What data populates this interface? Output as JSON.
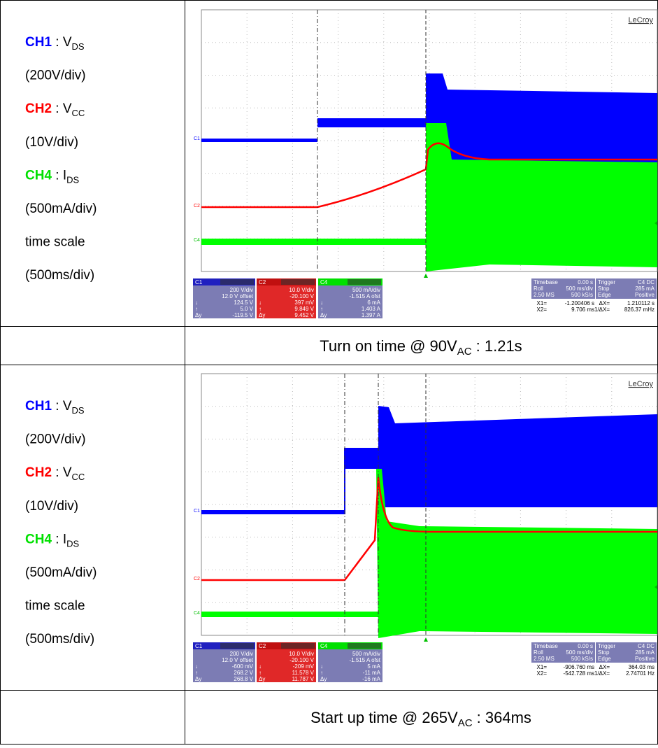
{
  "sections": [
    {
      "labels": [
        {
          "ch": "CH1",
          "color": "#0000ff",
          "text": " : V",
          "sub": "DS"
        },
        {
          "text": "(200V/div)"
        },
        {
          "ch": "CH2",
          "color": "#ff0000",
          "text": " : V",
          "sub": "CC"
        },
        {
          "text": "(10V/div)"
        },
        {
          "ch": "CH4",
          "color": "#00e000",
          "text": " : I",
          "sub": "DS"
        },
        {
          "text": "(500mA/div)"
        },
        {
          "text": "time scale"
        },
        {
          "text": "(500ms/div)"
        }
      ],
      "scope": {
        "brand": "LeCroy",
        "markers": [
          "C1",
          "C2",
          "C4"
        ],
        "channels": [
          {
            "label": "C1",
            "rows": [
              {
                "value": "200 V/div"
              },
              {
                "value": "12.0 V offset"
              },
              {
                "key": "↓",
                "value": "124.5 V"
              },
              {
                "key": "↑",
                "value": "5.0 V"
              },
              {
                "key": "Δy",
                "value": "-119.5 V"
              }
            ]
          },
          {
            "label": "C2",
            "rows": [
              {
                "value": "10.0 V/div"
              },
              {
                "value": "-20.100 V"
              },
              {
                "key": "↓",
                "value": "397 mV"
              },
              {
                "key": "↑",
                "value": "9.849 V"
              },
              {
                "key": "Δy",
                "value": "9.452 V"
              }
            ]
          },
          {
            "label": "C4",
            "rows": [
              {
                "value": "500 mA/div"
              },
              {
                "value": "-1.515 A ofst"
              },
              {
                "key": "↓",
                "value": "6 mA"
              },
              {
                "key": "↑",
                "value": "1.403 A"
              },
              {
                "key": "Δy",
                "value": "1.397 A"
              }
            ]
          }
        ],
        "timebase": [
          {
            "key": "Timebase",
            "value": "0.00 s"
          },
          {
            "key": "Roll",
            "value": "500 ms/div"
          },
          {
            "key": "2.50 MS",
            "value": "500 kS/s"
          }
        ],
        "trigger": [
          {
            "key": "Trigger",
            "value": "C4 DC"
          },
          {
            "key": "Stop",
            "value": "285 mA"
          },
          {
            "key": "Edge",
            "value": "Positive"
          }
        ],
        "cursors": [
          {
            "key": "X1=",
            "value": "-1.200406 s"
          },
          {
            "key": "ΔX=",
            "value": "1.210112 s"
          },
          {
            "key": "X2=",
            "value": "9.706 ms"
          },
          {
            "key": "1/ΔX=",
            "value": "826.37 mHz"
          }
        ]
      },
      "caption": {
        "pre": "Turn on time @ 90V",
        "sub": "AC",
        "post": " : 1.21s"
      }
    },
    {
      "labels": [
        {
          "ch": "CH1",
          "color": "#0000ff",
          "text": " : V",
          "sub": "DS"
        },
        {
          "text": "(200V/div)"
        },
        {
          "ch": "CH2",
          "color": "#ff0000",
          "text": " : V",
          "sub": "CC"
        },
        {
          "text": "(10V/div)"
        },
        {
          "ch": "CH4",
          "color": "#00e000",
          "text": " : I",
          "sub": "DS"
        },
        {
          "text": "(500mA/div)"
        },
        {
          "text": "time scale"
        },
        {
          "text": "(500ms/div)"
        }
      ],
      "scope": {
        "brand": "LeCroy",
        "markers": [
          "C1",
          "C2",
          "C4"
        ],
        "channels": [
          {
            "label": "C1",
            "rows": [
              {
                "value": "200 V/div"
              },
              {
                "value": "12.0 V offset"
              },
              {
                "key": "↓",
                "value": "-600 mV"
              },
              {
                "key": "↑",
                "value": "268.2 V"
              },
              {
                "key": "Δy",
                "value": "268.8 V"
              }
            ]
          },
          {
            "label": "C2",
            "rows": [
              {
                "value": "10.0 V/div"
              },
              {
                "value": "-20.100 V"
              },
              {
                "key": "↓",
                "value": "-209 mV"
              },
              {
                "key": "↑",
                "value": "11.578 V"
              },
              {
                "key": "Δy",
                "value": "11.787 V"
              }
            ]
          },
          {
            "label": "C4",
            "rows": [
              {
                "value": "500 mA/div"
              },
              {
                "value": "-1.515 A ofst"
              },
              {
                "key": "↓",
                "value": "5 mA"
              },
              {
                "key": "↑",
                "value": "-11 mA"
              },
              {
                "key": "Δy",
                "value": "-16 mA"
              }
            ]
          }
        ],
        "timebase": [
          {
            "key": "Timebase",
            "value": "0.00 s"
          },
          {
            "key": "Roll",
            "value": "500 ms/div"
          },
          {
            "key": "2.50 MS",
            "value": "500 kS/s"
          }
        ],
        "trigger": [
          {
            "key": "Trigger",
            "value": "C4 DC"
          },
          {
            "key": "Stop",
            "value": "285 mA"
          },
          {
            "key": "Edge",
            "value": "Positive"
          }
        ],
        "cursors": [
          {
            "key": "X1=",
            "value": "-906.760 ms"
          },
          {
            "key": "ΔX=",
            "value": "364.03 ms"
          },
          {
            "key": "X2=",
            "value": "-542.728 ms"
          },
          {
            "key": "1/ΔX=",
            "value": "2.74701 Hz"
          }
        ]
      },
      "caption": {
        "pre": "Start up time @ 265V",
        "sub": "AC",
        "post": " : 364ms"
      }
    }
  ]
}
